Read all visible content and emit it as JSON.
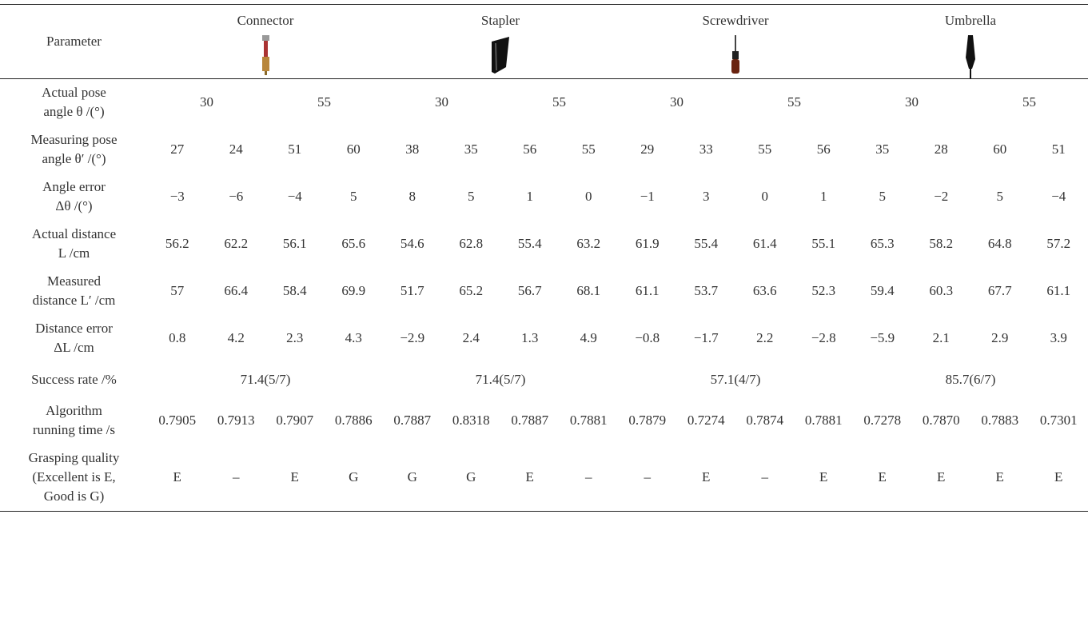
{
  "table": {
    "header": {
      "first": "Parameter",
      "objects": [
        "Connector",
        "Stapler",
        "Screwdriver",
        "Umbrella"
      ]
    },
    "rows": [
      {
        "label": [
          "Actual pose",
          "angle θ /(°)"
        ],
        "cells": [
          "30",
          "55",
          "30",
          "55",
          "30",
          "55",
          "30",
          "55"
        ]
      },
      {
        "label": [
          "Measuring pose",
          "angle θ′ /(°)"
        ],
        "cells": [
          "27",
          "24",
          "51",
          "60",
          "38",
          "35",
          "56",
          "55",
          "29",
          "33",
          "55",
          "56",
          "35",
          "28",
          "60",
          "51"
        ]
      },
      {
        "label": [
          "Angle error",
          "Δθ /(°)"
        ],
        "cells": [
          "−3",
          "−6",
          "−4",
          "5",
          "8",
          "5",
          "1",
          "0",
          "−1",
          "3",
          "0",
          "1",
          "5",
          "−2",
          "5",
          "−4"
        ]
      },
      {
        "label": [
          "Actual distance",
          "L /cm"
        ],
        "cells": [
          "56.2",
          "62.2",
          "56.1",
          "65.6",
          "54.6",
          "62.8",
          "55.4",
          "63.2",
          "61.9",
          "55.4",
          "61.4",
          "55.1",
          "65.3",
          "58.2",
          "64.8",
          "57.2"
        ]
      },
      {
        "label": [
          "Measured",
          "distance L′ /cm"
        ],
        "cells": [
          "57",
          "66.4",
          "58.4",
          "69.9",
          "51.7",
          "65.2",
          "56.7",
          "68.1",
          "61.1",
          "53.7",
          "63.6",
          "52.3",
          "59.4",
          "60.3",
          "67.7",
          "61.1"
        ]
      },
      {
        "label": [
          "Distance error",
          "ΔL /cm"
        ],
        "cells": [
          "0.8",
          "4.2",
          "2.3",
          "4.3",
          "−2.9",
          "2.4",
          "1.3",
          "4.9",
          "−0.8",
          "−1.7",
          "2.2",
          "−2.8",
          "−5.9",
          "2.1",
          "2.9",
          "3.9"
        ]
      },
      {
        "label": [
          "Success rate /%"
        ],
        "cells": [
          "71.4(5/7)",
          "71.4(5/7)",
          "57.1(4/7)",
          "85.7(6/7)"
        ]
      },
      {
        "label": [
          "Algorithm",
          "running time /s"
        ],
        "cells": [
          "0.7905",
          "0.7913",
          "0.7907",
          "0.7886",
          "0.7887",
          "0.8318",
          "0.7887",
          "0.7881",
          "0.7879",
          "0.7274",
          "0.7874",
          "0.7881",
          "0.7278",
          "0.7870",
          "0.7883",
          "0.7301"
        ]
      },
      {
        "label": [
          "Grasping quality",
          "(Excellent is E,",
          "Good is G)"
        ],
        "cells": [
          "E",
          "–",
          "E",
          "G",
          "G",
          "G",
          "E",
          "–",
          "–",
          "E",
          "–",
          "E",
          "E",
          "E",
          "E",
          "E"
        ]
      }
    ]
  }
}
